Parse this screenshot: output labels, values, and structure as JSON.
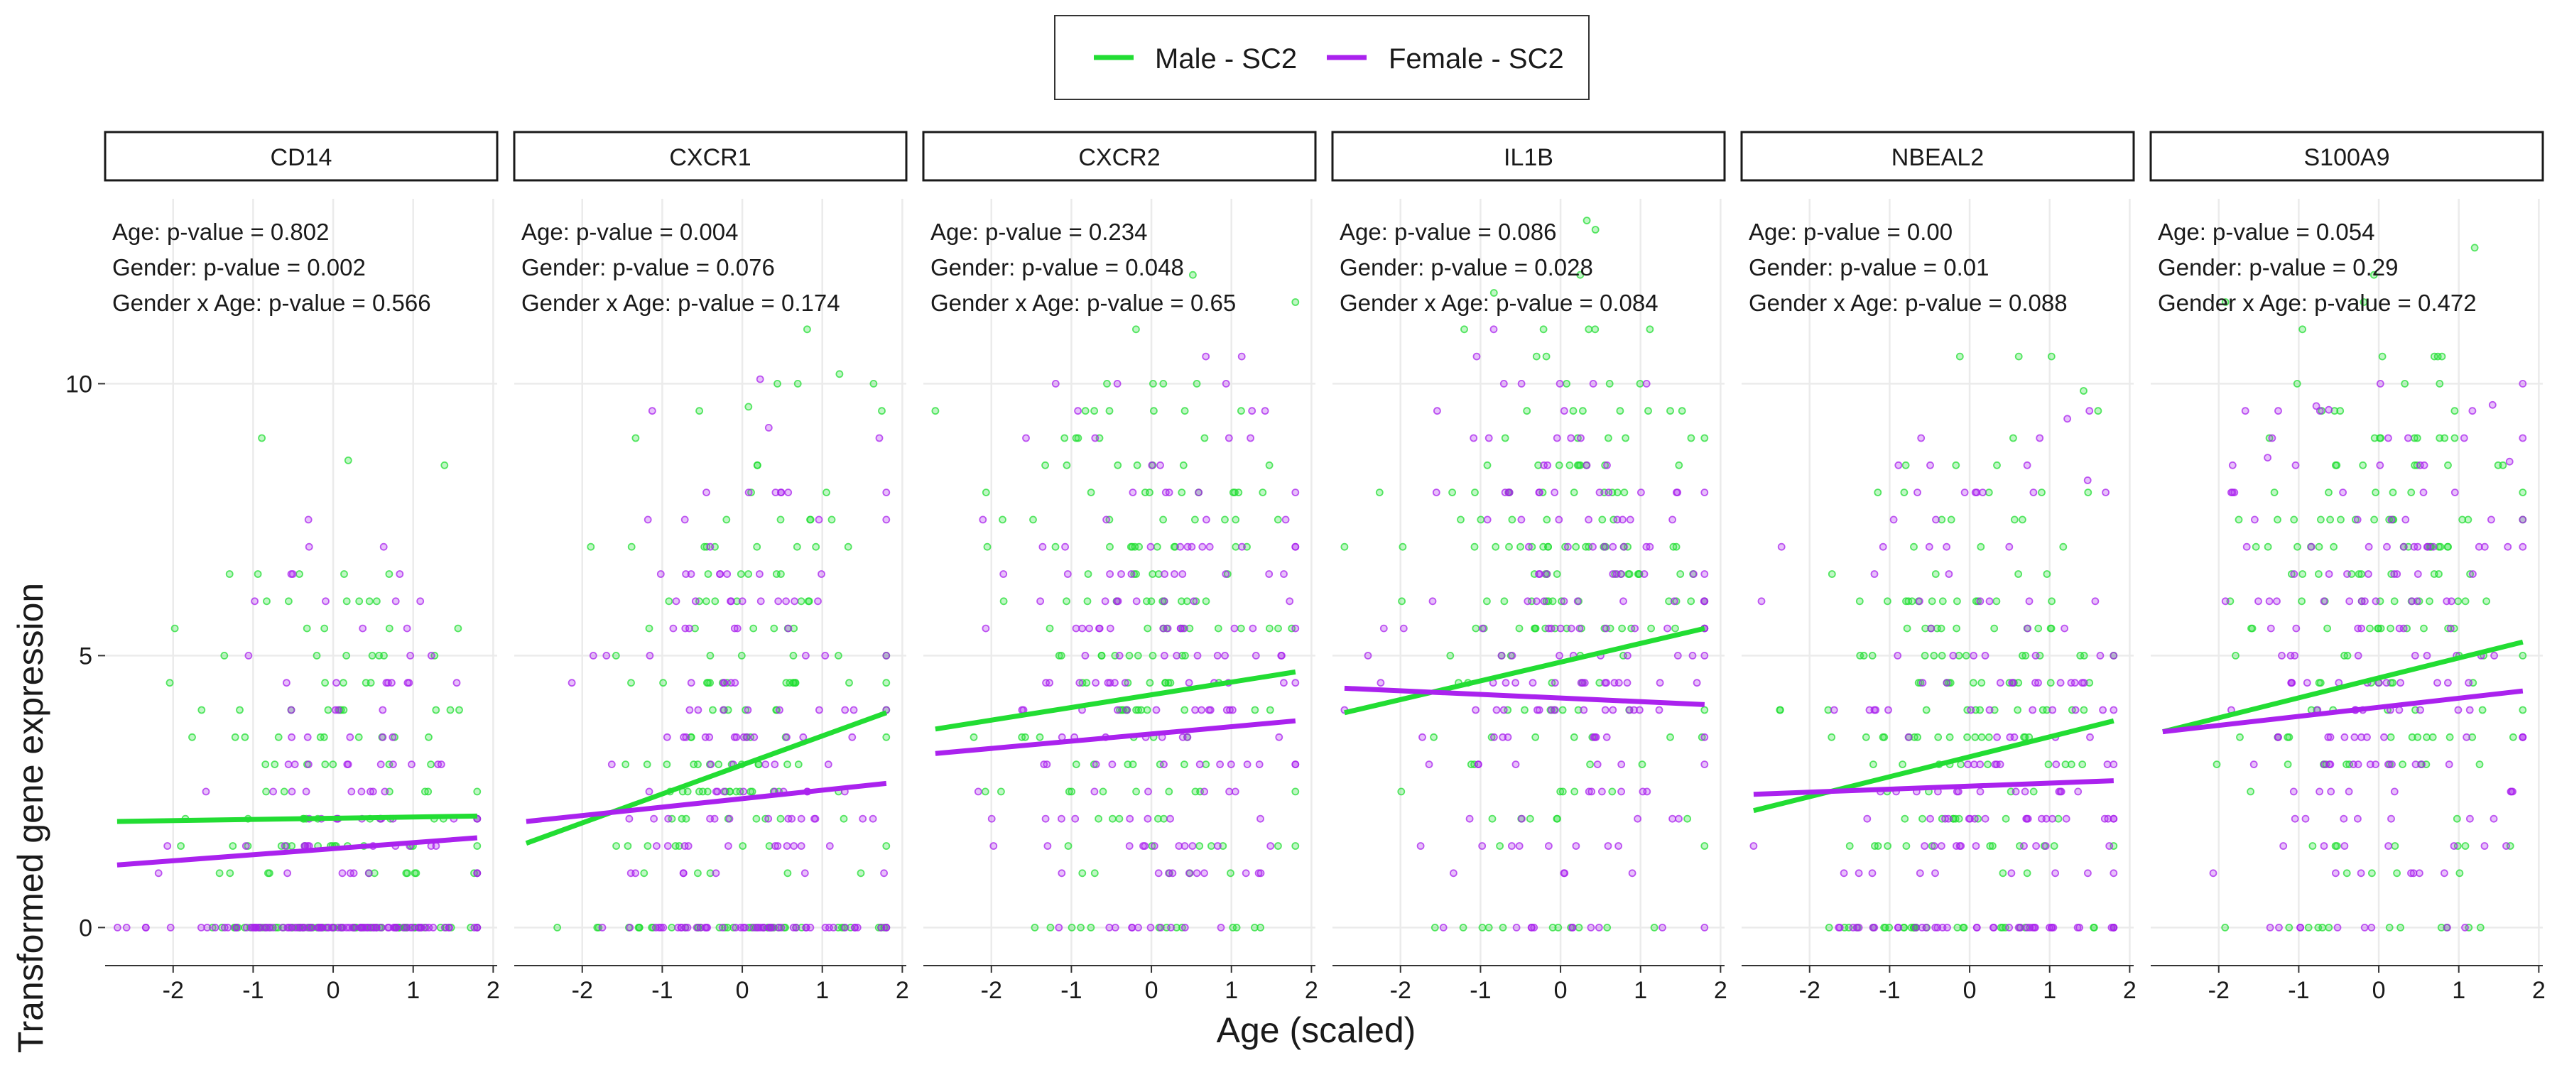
{
  "chart_data": {
    "type": "scatter",
    "xlabel": "Age (scaled)",
    "ylabel": "Transformed gene expression",
    "xlim": [
      -2.85,
      2.05
    ],
    "ylim": [
      -0.7,
      13.4
    ],
    "x_ticks": [
      -2,
      -1,
      0,
      1,
      2
    ],
    "x_tick_labels": [
      "-2",
      "-1",
      "0",
      "1",
      "2"
    ],
    "y_ticks": [
      0,
      5,
      10
    ],
    "y_tick_labels": [
      "0",
      "5",
      "10"
    ],
    "grid": true,
    "legend_position": "top",
    "series": [
      {
        "name": "Male - SC2",
        "color": "#22dd33"
      },
      {
        "name": "Female - SC2",
        "color": "#aa22ee"
      }
    ],
    "panels": [
      {
        "title": "CD14",
        "annotations": [
          "Age: p-value = 0.802",
          "Gender: p-value = 0.002",
          "Gender x Age: p-value = 0.566"
        ],
        "fit_lines": [
          {
            "series": "Male - SC2",
            "x": [
              -2.7,
              1.8
            ],
            "y": [
              1.95,
              2.05
            ]
          },
          {
            "series": "Female - SC2",
            "x": [
              -2.7,
              1.8
            ],
            "y": [
              1.15,
              1.65
            ]
          }
        ],
        "point_profile": {
          "male_ymax": 9.3,
          "female_ymax": 7.5,
          "male_zero_frac": 0.4,
          "female_zero_frac": 0.45
        }
      },
      {
        "title": "CXCR1",
        "annotations": [
          "Age: p-value = 0.004",
          "Gender: p-value = 0.076",
          "Gender x Age: p-value = 0.174"
        ],
        "fit_lines": [
          {
            "series": "Male - SC2",
            "x": [
              -2.7,
              1.8
            ],
            "y": [
              1.55,
              3.95
            ]
          },
          {
            "series": "Female - SC2",
            "x": [
              -2.7,
              1.8
            ],
            "y": [
              1.95,
              2.65
            ]
          }
        ],
        "point_profile": {
          "male_ymax": 11.1,
          "female_ymax": 10.4,
          "male_zero_frac": 0.25,
          "female_zero_frac": 0.3
        }
      },
      {
        "title": "CXCR2",
        "annotations": [
          "Age: p-value = 0.234",
          "Gender: p-value = 0.048",
          "Gender x Age: p-value = 0.65"
        ],
        "fit_lines": [
          {
            "series": "Male - SC2",
            "x": [
              -2.7,
              1.8
            ],
            "y": [
              3.65,
              4.7
            ]
          },
          {
            "series": "Female - SC2",
            "x": [
              -2.7,
              1.8
            ],
            "y": [
              3.2,
              3.8
            ]
          }
        ],
        "point_profile": {
          "male_ymax": 12.2,
          "female_ymax": 10.8,
          "male_zero_frac": 0.06,
          "female_zero_frac": 0.08
        }
      },
      {
        "title": "IL1B",
        "annotations": [
          "Age: p-value = 0.086",
          "Gender: p-value = 0.028",
          "Gender x Age: p-value = 0.084"
        ],
        "fit_lines": [
          {
            "series": "Male - SC2",
            "x": [
              -2.7,
              1.8
            ],
            "y": [
              3.95,
              5.5
            ]
          },
          {
            "series": "Female - SC2",
            "x": [
              -2.7,
              1.8
            ],
            "y": [
              4.4,
              4.1
            ]
          }
        ],
        "point_profile": {
          "male_ymax": 13.0,
          "female_ymax": 13.1,
          "male_zero_frac": 0.06,
          "female_zero_frac": 0.06
        }
      },
      {
        "title": "NBEAL2",
        "annotations": [
          "Age: p-value = 0.00",
          "Gender: p-value = 0.01",
          "Gender x Age: p-value = 0.088"
        ],
        "fit_lines": [
          {
            "series": "Male - SC2",
            "x": [
              -2.7,
              1.8
            ],
            "y": [
              2.15,
              3.8
            ]
          },
          {
            "series": "Female - SC2",
            "x": [
              -2.7,
              1.8
            ],
            "y": [
              2.45,
              2.7
            ]
          }
        ],
        "point_profile": {
          "male_ymax": 10.8,
          "female_ymax": 10.2,
          "male_zero_frac": 0.2,
          "female_zero_frac": 0.22
        }
      },
      {
        "title": "S100A9",
        "annotations": [
          "Age: p-value = 0.054",
          "Gender: p-value = 0.29",
          "Gender x Age: p-value = 0.472"
        ],
        "fit_lines": [
          {
            "series": "Male - SC2",
            "x": [
              -2.7,
              1.8
            ],
            "y": [
              3.6,
              5.25
            ]
          },
          {
            "series": "Female - SC2",
            "x": [
              -2.7,
              1.8
            ],
            "y": [
              3.6,
              4.35
            ]
          }
        ],
        "point_profile": {
          "male_ymax": 13.1,
          "female_ymax": 10.3,
          "male_zero_frac": 0.06,
          "female_zero_frac": 0.06
        }
      }
    ]
  }
}
